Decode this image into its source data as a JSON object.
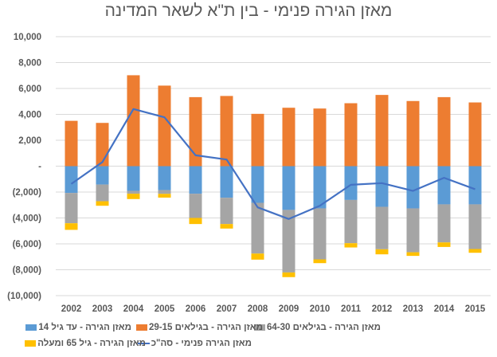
{
  "chart_data": {
    "type": "bar",
    "stacked": true,
    "title": "מאזן הגירה פנימי - בין ת\"א לשאר המדינה",
    "xlabel": "",
    "ylabel": "",
    "ylim": [
      -10000,
      10000
    ],
    "y_tick_labels": [
      "10,000",
      "8,000",
      "6,000",
      "4,000",
      "2,000",
      "-",
      "(2,000)",
      "(4,000)",
      "(6,000)",
      "(8,000)",
      "(10,000)"
    ],
    "y_ticks": [
      10000,
      8000,
      6000,
      4000,
      2000,
      0,
      -2000,
      -4000,
      -6000,
      -8000,
      -10000
    ],
    "grid": true,
    "legend_position": "bottom",
    "categories": [
      "2002",
      "2003",
      "2004",
      "2005",
      "2006",
      "2007",
      "2008",
      "2009",
      "2010",
      "2011",
      "2012",
      "2013",
      "2014",
      "2015"
    ],
    "series": [
      {
        "name": "מאזן הגירה - עד גיל 14",
        "type": "bar",
        "color": "#5B9BD5",
        "values": [
          -2070,
          -1420,
          -1910,
          -1850,
          -2130,
          -2440,
          -2830,
          -3380,
          -3260,
          -2610,
          -3140,
          -3260,
          -2950,
          -2950
        ]
      },
      {
        "name": "מאזן הגירה - בגילאים 29-15",
        "type": "bar",
        "color": "#ED7D31",
        "values": [
          3500,
          3340,
          7020,
          6220,
          5330,
          5420,
          4040,
          4510,
          4450,
          4860,
          5500,
          5030,
          5330,
          4920
        ]
      },
      {
        "name": "מאזן הגירה - בגילאים 64-30",
        "type": "bar",
        "color": "#A5A5A5",
        "values": [
          -2340,
          -1290,
          -220,
          -290,
          -1870,
          -2030,
          -3920,
          -4830,
          -3940,
          -3340,
          -3280,
          -3390,
          -2940,
          -3450
        ]
      },
      {
        "name": "מאזן הגירה -  גיל 65 ומעלה",
        "type": "bar",
        "color": "#FFC000",
        "values": [
          -510,
          -350,
          -410,
          -290,
          -470,
          -350,
          -470,
          -360,
          -290,
          -330,
          -390,
          -280,
          -350,
          -290
        ]
      },
      {
        "name": "מאזן הגירה פנימי - סה\"כ",
        "type": "line",
        "color": "#4472C4",
        "values": [
          -1370,
          310,
          4410,
          3770,
          840,
          510,
          -3180,
          -4080,
          -3060,
          -1440,
          -1310,
          -1910,
          -900,
          -1780
        ]
      }
    ]
  }
}
